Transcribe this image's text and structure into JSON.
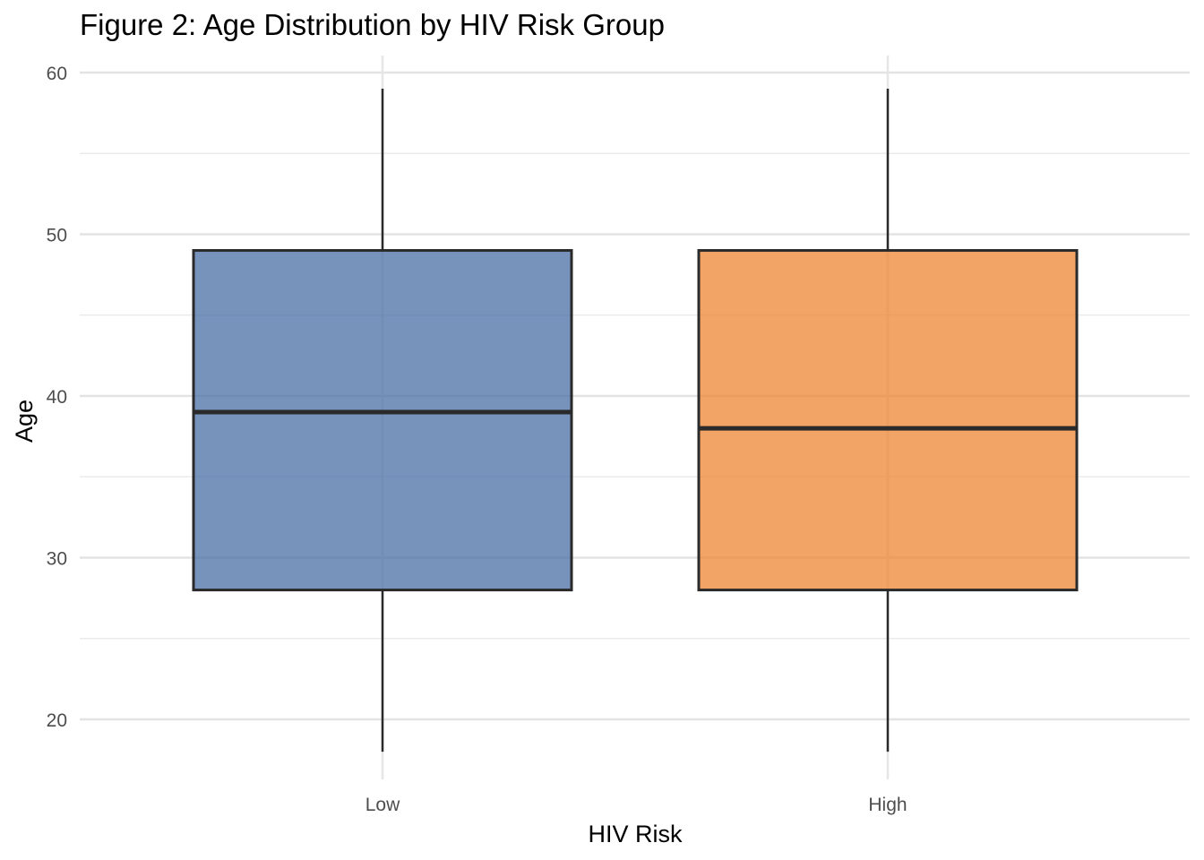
{
  "chart_data": {
    "type": "box",
    "title": "Figure 2: Age Distribution by HIV Risk Group",
    "xlabel": "HIV Risk",
    "ylabel": "Age",
    "ylim": [
      16,
      61
    ],
    "y_ticks": [
      20,
      30,
      40,
      50,
      60
    ],
    "y_minor_ticks": [
      25,
      35,
      45,
      55
    ],
    "grid": true,
    "legend": "none",
    "categories": [
      "Low",
      "High"
    ],
    "boxes": [
      {
        "category": "Low",
        "min": 18,
        "q1": 28,
        "median": 39,
        "q3": 49,
        "max": 59,
        "color": "#4a6fa5"
      },
      {
        "category": "High",
        "min": 18,
        "q1": 28,
        "median": 38,
        "q3": 49,
        "max": 59,
        "color": "#ee8533"
      }
    ]
  }
}
